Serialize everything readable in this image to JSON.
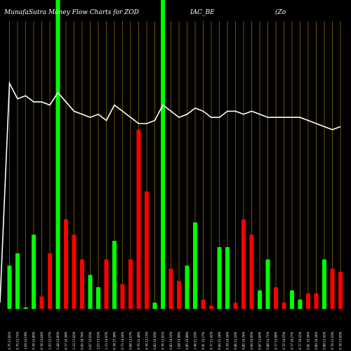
{
  "chart_data": {
    "type": "bar",
    "title": {
      "part1": "MunafaSutra  Money Flow  Charts for ZOD",
      "part2": "IAC_BE",
      "part3": "(Zo"
    },
    "xlabel": "",
    "ylabel": "",
    "ylim": [
      0,
      100
    ],
    "colors": {
      "background": "#000000",
      "up": "#00ff00",
      "down": "#ff0000",
      "grid": "#b8860b",
      "line": "#ffffff"
    },
    "categories": [
      "0.75 17.81%",
      "0.75 12.71%",
      "1.09 14.19%",
      "0.78 12.80%",
      "0.78 13.64%",
      "1.43 12.07%",
      "1.48 13.90%",
      "0.77 16.38%",
      "1.13 17.62%",
      "0.95 18.79%",
      "0.67 15.63%",
      "1.03 13.52%",
      "1.13 14.97%",
      "0.78 17.38%",
      "0.73 14.44%",
      "0.68 12.07%",
      "0.70 11.48%",
      "0.76 12.15%",
      "0.83 12.30%",
      "0.76 12.81%",
      "0.83 14.22%",
      "1.08 13.99%",
      "0.85 15.88%",
      "1.46 11.53%",
      "0.91 15.27%",
      "0.77 11.42%",
      "0.84 11.28%",
      "0.78 14.26%",
      "0.86 11.20%",
      "0.85 14.76%",
      "0.94 10.95%",
      "0.87 12.60%",
      "0.88 13.71%",
      "0.77 13.98%",
      "0.72 14.55%",
      "0.77 16.27%",
      "0.77 19.32%",
      "0.81 15.54%",
      "0.80 19.34%",
      "0.88 11.42%",
      "0.74 11.20%",
      "0.78 13.65%"
    ],
    "bar_values": [
      14,
      18,
      0.5,
      24,
      4,
      18,
      100,
      29,
      24,
      16,
      11,
      7,
      16,
      22,
      8,
      16,
      58,
      38,
      2,
      100,
      13,
      9,
      14,
      28,
      3,
      1,
      20,
      20,
      2,
      29,
      24,
      6,
      16,
      7,
      2,
      6,
      3,
      5,
      5,
      16,
      13,
      12
    ],
    "bar_colors": [
      "green",
      "green",
      "green",
      "green",
      "red",
      "red",
      "green",
      "red",
      "red",
      "red",
      "green",
      "green",
      "red",
      "green",
      "red",
      "red",
      "red",
      "red",
      "green",
      "green",
      "red",
      "red",
      "green",
      "green",
      "red",
      "red",
      "green",
      "green",
      "red",
      "red",
      "red",
      "green",
      "green",
      "red",
      "red",
      "green",
      "green",
      "red",
      "red",
      "green",
      "red",
      "red"
    ],
    "line_values": [
      73,
      68,
      69,
      67,
      67,
      66,
      70,
      67,
      64,
      63,
      62,
      63,
      61,
      66,
      64,
      62,
      60,
      60,
      61,
      66,
      64,
      62,
      63,
      65,
      64,
      62,
      62,
      64,
      64,
      63,
      64,
      63,
      62,
      62,
      62,
      62,
      62,
      61,
      60,
      59,
      58,
      59
    ],
    "line_start_value": 2
  }
}
